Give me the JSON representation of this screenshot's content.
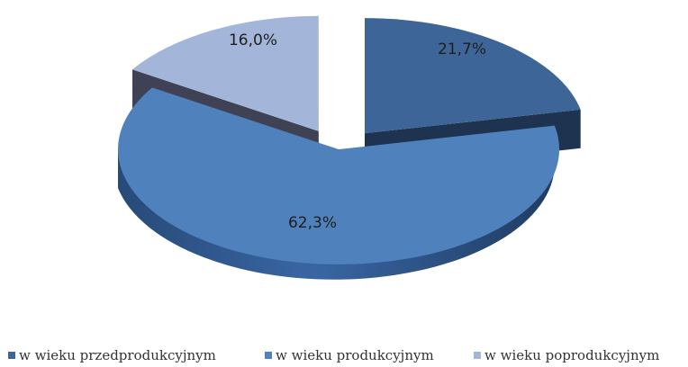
{
  "chart_data": {
    "type": "pie",
    "style": "3d-exploded",
    "categories": [
      "w wieku przedprodukcyjnym",
      "w wieku produkcyjnym",
      "w wieku poprodukcyjnym"
    ],
    "values": [
      21.7,
      62.3,
      16.0
    ],
    "labels": [
      "21,7%",
      "62,3%",
      "16,0%"
    ],
    "colors": [
      "#3e6597",
      "#4f81bd",
      "#a3b5d9"
    ],
    "side_colors": [
      "#1e3350",
      "#2d5385",
      "#3f4255"
    ],
    "legend_placement": "bottom"
  }
}
